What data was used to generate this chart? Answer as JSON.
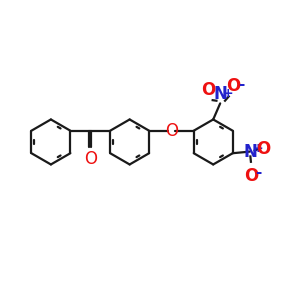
{
  "bg_color": "#ffffff",
  "bond_color": "#1a1a1a",
  "oxygen_color": "#ee1111",
  "nitrogen_color": "#2222cc",
  "lw": 1.6,
  "dbl_sep": 0.018,
  "r": 0.42,
  "xlim": [
    -3.2,
    2.4
  ],
  "ylim": [
    -1.3,
    1.1
  ]
}
